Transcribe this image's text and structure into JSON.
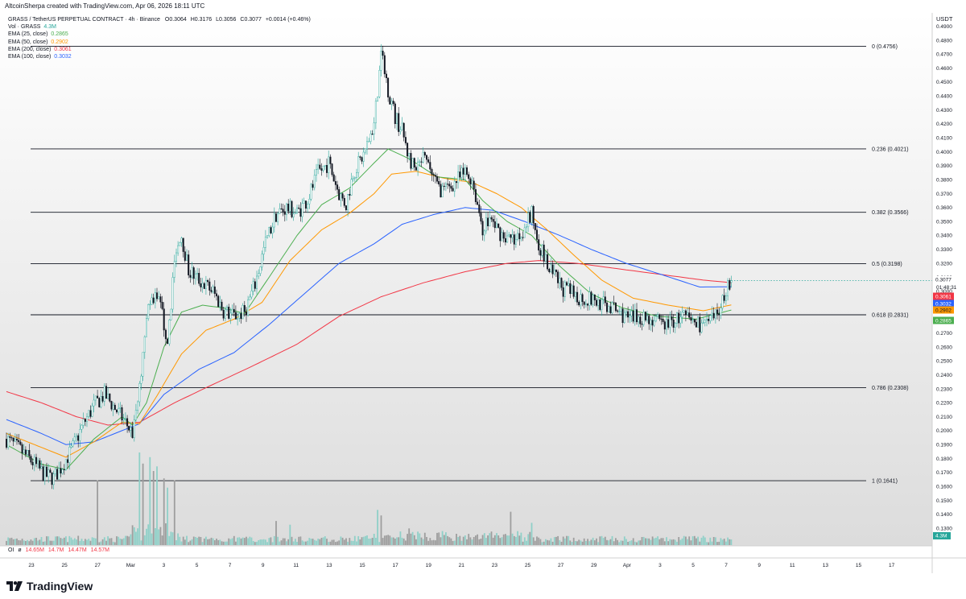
{
  "header": {
    "caption": "AltcoinSherpa created with TradingView.com, Apr 06, 2026 18:11 UTC"
  },
  "legend": {
    "symbol": "GRASS / TetherUS PERPETUAL CONTRACT · 4h · Binance",
    "ohlc": {
      "o": "O0.3064",
      "h": "H0.3176",
      "l": "L0.3056",
      "c": "C0.3077",
      "chg": "+0.0014 (+0.46%)"
    },
    "volume": {
      "label": "Vol · GRASS",
      "value": "4.3M"
    },
    "emas": [
      {
        "label": "EMA (25, close)",
        "value": "0.2865",
        "color": "#4caf50"
      },
      {
        "label": "EMA (50, close)",
        "value": "0.2902",
        "color": "#ff9800"
      },
      {
        "label": "EMA (200, close)",
        "value": "0.3061",
        "color": "#f23645"
      },
      {
        "label": "EMA (100, close)",
        "value": "0.3032",
        "color": "#2962ff"
      }
    ]
  },
  "oi": {
    "label": "OI",
    "symbol": "ø",
    "values": [
      "14.65M",
      "14.7M",
      "14.47M",
      "14.57M"
    ],
    "color": "#f23645"
  },
  "brand": {
    "name": "TradingView"
  },
  "axis": {
    "currency": "USDT",
    "countdown": "01:48:31"
  },
  "price_tags": [
    {
      "value": "0.3077",
      "color": "#ffffff",
      "text_color": "#131722"
    },
    {
      "value": "0.3061",
      "color": "#f23645",
      "text_color": "#ffffff"
    },
    {
      "value": "0.3032",
      "color": "#2962ff",
      "text_color": "#ffffff"
    },
    {
      "value": "0.2902",
      "color": "#ff9800",
      "text_color": "#131722"
    },
    {
      "value": "0.2865",
      "color": "#4caf50",
      "text_color": "#ffffff"
    }
  ],
  "volume_tag": {
    "value": "4.3M",
    "color": "#26a69a"
  },
  "chart_data": {
    "type": "candlestick",
    "timeframe": "4h",
    "x_ticks": [
      "23",
      "25",
      "27",
      "Mar",
      "3",
      "5",
      "7",
      "9",
      "11",
      "13",
      "15",
      "17",
      "19",
      "21",
      "23",
      "25",
      "27",
      "29",
      "Apr",
      "3",
      "5",
      "7",
      "9",
      "11",
      "13",
      "15",
      "17"
    ],
    "y_ticks": [
      "0.4900",
      "0.4800",
      "0.4700",
      "0.4600",
      "0.4500",
      "0.4400",
      "0.4300",
      "0.4200",
      "0.4100",
      "0.4000",
      "0.3900",
      "0.3800",
      "0.3700",
      "0.3600",
      "0.3500",
      "0.3400",
      "0.3300",
      "0.3200",
      "0.3100",
      "0.3000",
      "0.2900",
      "0.2800",
      "0.2700",
      "0.2600",
      "0.2500",
      "0.2400",
      "0.2300",
      "0.2200",
      "0.2100",
      "0.2000",
      "0.1900",
      "0.1800",
      "0.1700",
      "0.1600",
      "0.1500",
      "0.1400",
      "0.1300"
    ],
    "ylim": [
      0.122,
      0.495
    ],
    "fib_levels": [
      {
        "label": "0 (0.4756)",
        "value": 0.4756
      },
      {
        "label": "0.236 (0.4021)",
        "value": 0.4021
      },
      {
        "label": "0.382 (0.3566)",
        "value": 0.3566
      },
      {
        "label": "0.5 (0.3198)",
        "value": 0.3198
      },
      {
        "label": "0.618 (0.2831)",
        "value": 0.2831
      },
      {
        "label": "0.786 (0.2308)",
        "value": 0.2308
      },
      {
        "label": "1 (0.1641)",
        "value": 0.1641
      }
    ],
    "price_path": [
      [
        0,
        0.194
      ],
      [
        8,
        0.186
      ],
      [
        16,
        0.176
      ],
      [
        22,
        0.168
      ],
      [
        27,
        0.166
      ],
      [
        32,
        0.175
      ],
      [
        38,
        0.188
      ],
      [
        44,
        0.205
      ],
      [
        50,
        0.218
      ],
      [
        56,
        0.226
      ],
      [
        62,
        0.216
      ],
      [
        68,
        0.206
      ],
      [
        72,
        0.198
      ],
      [
        76,
        0.23
      ],
      [
        80,
        0.285
      ],
      [
        86,
        0.3
      ],
      [
        92,
        0.265
      ],
      [
        96,
        0.32
      ],
      [
        100,
        0.34
      ],
      [
        104,
        0.315
      ],
      [
        110,
        0.308
      ],
      [
        118,
        0.3
      ],
      [
        124,
        0.286
      ],
      [
        130,
        0.282
      ],
      [
        136,
        0.285
      ],
      [
        142,
        0.305
      ],
      [
        148,
        0.335
      ],
      [
        154,
        0.355
      ],
      [
        160,
        0.36
      ],
      [
        166,
        0.356
      ],
      [
        172,
        0.366
      ],
      [
        178,
        0.385
      ],
      [
        184,
        0.392
      ],
      [
        190,
        0.37
      ],
      [
        194,
        0.362
      ],
      [
        198,
        0.385
      ],
      [
        204,
        0.398
      ],
      [
        210,
        0.42
      ],
      [
        214,
        0.47
      ],
      [
        218,
        0.445
      ],
      [
        222,
        0.425
      ],
      [
        226,
        0.415
      ],
      [
        230,
        0.395
      ],
      [
        234,
        0.385
      ],
      [
        238,
        0.395
      ],
      [
        242,
        0.388
      ],
      [
        246,
        0.375
      ],
      [
        250,
        0.372
      ],
      [
        256,
        0.378
      ],
      [
        262,
        0.385
      ],
      [
        266,
        0.38
      ],
      [
        272,
        0.345
      ],
      [
        276,
        0.352
      ],
      [
        282,
        0.342
      ],
      [
        288,
        0.336
      ],
      [
        294,
        0.342
      ],
      [
        300,
        0.355
      ],
      [
        304,
        0.335
      ],
      [
        310,
        0.315
      ],
      [
        318,
        0.302
      ],
      [
        326,
        0.296
      ],
      [
        334,
        0.294
      ],
      [
        342,
        0.29
      ],
      [
        350,
        0.285
      ],
      [
        356,
        0.28
      ],
      [
        362,
        0.282
      ],
      [
        368,
        0.28
      ],
      [
        374,
        0.276
      ],
      [
        380,
        0.278
      ],
      [
        386,
        0.282
      ],
      [
        392,
        0.278
      ],
      [
        398,
        0.276
      ],
      [
        404,
        0.279
      ],
      [
        408,
        0.29
      ],
      [
        412,
        0.305
      ],
      [
        414,
        0.3077
      ]
    ],
    "ema25": [
      [
        0,
        0.19
      ],
      [
        20,
        0.176
      ],
      [
        34,
        0.172
      ],
      [
        50,
        0.194
      ],
      [
        66,
        0.21
      ],
      [
        72,
        0.204
      ],
      [
        80,
        0.22
      ],
      [
        90,
        0.26
      ],
      [
        100,
        0.285
      ],
      [
        112,
        0.29
      ],
      [
        124,
        0.288
      ],
      [
        136,
        0.284
      ],
      [
        150,
        0.31
      ],
      [
        166,
        0.34
      ],
      [
        180,
        0.362
      ],
      [
        196,
        0.374
      ],
      [
        210,
        0.392
      ],
      [
        218,
        0.402
      ],
      [
        230,
        0.395
      ],
      [
        246,
        0.382
      ],
      [
        262,
        0.38
      ],
      [
        272,
        0.365
      ],
      [
        286,
        0.35
      ],
      [
        300,
        0.34
      ],
      [
        316,
        0.318
      ],
      [
        334,
        0.298
      ],
      [
        352,
        0.288
      ],
      [
        372,
        0.282
      ],
      [
        394,
        0.28
      ],
      [
        414,
        0.2865
      ]
    ],
    "ema50": [
      [
        0,
        0.198
      ],
      [
        20,
        0.188
      ],
      [
        34,
        0.181
      ],
      [
        50,
        0.192
      ],
      [
        66,
        0.206
      ],
      [
        76,
        0.205
      ],
      [
        86,
        0.225
      ],
      [
        100,
        0.255
      ],
      [
        114,
        0.272
      ],
      [
        130,
        0.28
      ],
      [
        146,
        0.292
      ],
      [
        162,
        0.322
      ],
      [
        180,
        0.344
      ],
      [
        196,
        0.356
      ],
      [
        210,
        0.37
      ],
      [
        220,
        0.384
      ],
      [
        234,
        0.386
      ],
      [
        250,
        0.381
      ],
      [
        266,
        0.378
      ],
      [
        280,
        0.37
      ],
      [
        294,
        0.36
      ],
      [
        308,
        0.345
      ],
      [
        324,
        0.326
      ],
      [
        340,
        0.308
      ],
      [
        358,
        0.295
      ],
      [
        378,
        0.29
      ],
      [
        398,
        0.286
      ],
      [
        414,
        0.2902
      ]
    ],
    "ema100": [
      [
        0,
        0.208
      ],
      [
        20,
        0.198
      ],
      [
        34,
        0.19
      ],
      [
        50,
        0.192
      ],
      [
        66,
        0.2
      ],
      [
        76,
        0.205
      ],
      [
        90,
        0.226
      ],
      [
        110,
        0.244
      ],
      [
        130,
        0.256
      ],
      [
        150,
        0.276
      ],
      [
        170,
        0.298
      ],
      [
        190,
        0.32
      ],
      [
        210,
        0.334
      ],
      [
        226,
        0.348
      ],
      [
        244,
        0.355
      ],
      [
        262,
        0.36
      ],
      [
        278,
        0.358
      ],
      [
        296,
        0.35
      ],
      [
        316,
        0.34
      ],
      [
        334,
        0.33
      ],
      [
        354,
        0.32
      ],
      [
        374,
        0.312
      ],
      [
        396,
        0.303
      ],
      [
        414,
        0.3032
      ]
    ],
    "ema200": [
      [
        0,
        0.228
      ],
      [
        20,
        0.22
      ],
      [
        40,
        0.21
      ],
      [
        58,
        0.204
      ],
      [
        76,
        0.206
      ],
      [
        96,
        0.22
      ],
      [
        116,
        0.232
      ],
      [
        140,
        0.246
      ],
      [
        166,
        0.262
      ],
      [
        190,
        0.282
      ],
      [
        214,
        0.296
      ],
      [
        238,
        0.306
      ],
      [
        262,
        0.314
      ],
      [
        286,
        0.32
      ],
      [
        304,
        0.322
      ],
      [
        326,
        0.32
      ],
      [
        350,
        0.316
      ],
      [
        374,
        0.312
      ],
      [
        398,
        0.308
      ],
      [
        414,
        0.3061
      ]
    ],
    "volume_spikes": [
      {
        "i": 52,
        "v": 0.7,
        "up": false
      },
      {
        "i": 76,
        "v": 1.0,
        "up": true
      },
      {
        "i": 78,
        "v": 0.88,
        "up": false
      },
      {
        "i": 82,
        "v": 0.95,
        "up": true
      },
      {
        "i": 84,
        "v": 0.8,
        "up": false
      },
      {
        "i": 86,
        "v": 0.85,
        "up": true
      },
      {
        "i": 90,
        "v": 0.72,
        "up": false
      },
      {
        "i": 92,
        "v": 0.62,
        "up": true
      },
      {
        "i": 96,
        "v": 0.7,
        "up": false
      },
      {
        "i": 212,
        "v": 0.38,
        "up": true
      },
      {
        "i": 214,
        "v": 0.32,
        "up": false
      },
      {
        "i": 288,
        "v": 0.36,
        "up": false
      },
      {
        "i": 154,
        "v": 0.26,
        "up": false
      },
      {
        "i": 162,
        "v": 0.22,
        "up": true
      },
      {
        "i": 230,
        "v": 0.18,
        "up": false
      },
      {
        "i": 300,
        "v": 0.24,
        "up": true
      }
    ],
    "colors": {
      "up": "#26a69a",
      "down": "#131722",
      "vol_up": "#8fd0c8",
      "vol_down": "#9e9e9e"
    }
  }
}
